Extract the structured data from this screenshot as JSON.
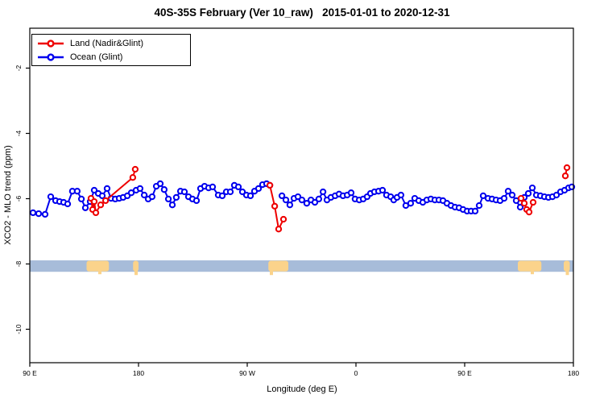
{
  "title": "40S-35S February (Ver 10_raw)   2015-01-01 to 2020-12-31",
  "legend": {
    "items": [
      {
        "label": "Land (Nadir&Glint)",
        "color": "#ee0000"
      },
      {
        "label": "Ocean (Glint)",
        "color": "#0000ee"
      }
    ]
  },
  "chart_data": {
    "type": "line",
    "title": "40S-35S February (Ver 10_raw)   2015-01-01 to 2020-12-31",
    "xlabel": "Longitude (deg E)",
    "ylabel": "XCO2 - MLO trend (ppm)",
    "x_axis": {
      "note": "wrapped longitude axis spanning 450 degrees starting at 90E; t = degrees east of 90E",
      "range_t": [
        0,
        450
      ],
      "ticks": [
        {
          "t": 0,
          "label": "90 E"
        },
        {
          "t": 90,
          "label": "180"
        },
        {
          "t": 180,
          "label": "90 W"
        },
        {
          "t": 270,
          "label": "0"
        },
        {
          "t": 360,
          "label": "90 E"
        },
        {
          "t": 450,
          "label": "180"
        }
      ]
    },
    "y_axis": {
      "ticks": [
        -2,
        -4,
        -6,
        -8,
        -10
      ],
      "range": [
        -11.0,
        -0.8
      ],
      "grid": false
    },
    "series": [
      {
        "name": "Land (Nadir&Glint)",
        "color": "#ee0000",
        "marker": "open-circle",
        "segments": [
          [
            [
              50.7,
              -5.99
            ],
            [
              52,
              -6.33
            ],
            [
              53.3,
              -6.09
            ],
            [
              54.7,
              -6.43
            ],
            [
              58.7,
              -6.19
            ],
            [
              62.7,
              -6.06
            ],
            [
              85.3,
              -5.35
            ],
            [
              87.3,
              -5.1
            ]
          ],
          [
            [
              198.7,
              -5.59
            ],
            [
              202.7,
              -6.23
            ],
            [
              206,
              -6.93
            ],
            [
              210,
              -6.63
            ]
          ],
          [
            [
              406.7,
              -5.99
            ],
            [
              409.3,
              -6.14
            ],
            [
              411.3,
              -6.33
            ],
            [
              413.3,
              -6.41
            ],
            [
              416.7,
              -6.11
            ]
          ],
          [
            [
              443.3,
              -5.3
            ],
            [
              444.7,
              -5.05
            ]
          ]
        ]
      },
      {
        "name": "Ocean (Glint)",
        "color": "#0000ee",
        "marker": "open-circle",
        "segments": [
          [
            [
              2.7,
              -6.43
            ],
            [
              7.3,
              -6.46
            ],
            [
              12.7,
              -6.48
            ],
            [
              17.3,
              -5.94
            ],
            [
              21.3,
              -6.06
            ],
            [
              24.7,
              -6.09
            ],
            [
              28,
              -6.11
            ],
            [
              31.3,
              -6.16
            ],
            [
              35.3,
              -5.77
            ],
            [
              39.3,
              -5.77
            ],
            [
              42.7,
              -6.01
            ],
            [
              46,
              -6.28
            ],
            [
              50,
              -6.09
            ],
            [
              53.3,
              -5.74
            ],
            [
              56.7,
              -5.84
            ],
            [
              60,
              -5.91
            ],
            [
              64,
              -5.69
            ],
            [
              67.3,
              -5.99
            ],
            [
              70.7,
              -6.01
            ],
            [
              74,
              -5.99
            ],
            [
              77.3,
              -5.96
            ],
            [
              80.7,
              -5.91
            ],
            [
              84,
              -5.82
            ],
            [
              88,
              -5.74
            ],
            [
              91.3,
              -5.69
            ],
            [
              94.7,
              -5.89
            ],
            [
              98,
              -6.01
            ],
            [
              101.3,
              -5.94
            ],
            [
              104.7,
              -5.62
            ],
            [
              108,
              -5.54
            ],
            [
              111.3,
              -5.72
            ],
            [
              114.7,
              -6.01
            ],
            [
              118,
              -6.19
            ],
            [
              121.3,
              -5.96
            ],
            [
              124.7,
              -5.77
            ],
            [
              128,
              -5.79
            ],
            [
              131.3,
              -5.94
            ],
            [
              134.7,
              -6.01
            ],
            [
              138,
              -6.06
            ],
            [
              141.3,
              -5.69
            ],
            [
              144.7,
              -5.62
            ],
            [
              148,
              -5.67
            ],
            [
              151.3,
              -5.64
            ],
            [
              156,
              -5.89
            ],
            [
              159.3,
              -5.91
            ],
            [
              162.7,
              -5.79
            ],
            [
              166,
              -5.79
            ],
            [
              169.3,
              -5.59
            ],
            [
              172.7,
              -5.64
            ],
            [
              176,
              -5.79
            ],
            [
              179.3,
              -5.89
            ],
            [
              182.7,
              -5.91
            ],
            [
              186,
              -5.77
            ],
            [
              189.3,
              -5.69
            ],
            [
              192.7,
              -5.57
            ],
            [
              196,
              -5.54
            ],
            [
              198.7,
              -5.59
            ]
          ],
          [
            [
              208.7,
              -5.91
            ],
            [
              212,
              -6.04
            ],
            [
              215.3,
              -6.19
            ],
            [
              218.7,
              -5.99
            ],
            [
              222,
              -5.94
            ],
            [
              225.3,
              -6.04
            ],
            [
              229.3,
              -6.14
            ],
            [
              232.7,
              -6.04
            ],
            [
              236,
              -6.11
            ],
            [
              239.3,
              -6.01
            ],
            [
              242.7,
              -5.79
            ],
            [
              246,
              -6.04
            ],
            [
              249.3,
              -5.96
            ],
            [
              252.7,
              -5.91
            ],
            [
              256,
              -5.86
            ],
            [
              259.3,
              -5.91
            ],
            [
              262.7,
              -5.89
            ],
            [
              266,
              -5.82
            ],
            [
              269.3,
              -6.01
            ],
            [
              272.7,
              -6.04
            ],
            [
              276,
              -6.01
            ],
            [
              279.3,
              -5.94
            ],
            [
              282,
              -5.84
            ],
            [
              285.3,
              -5.79
            ],
            [
              288.7,
              -5.77
            ],
            [
              292,
              -5.74
            ],
            [
              295.3,
              -5.89
            ],
            [
              298.7,
              -5.94
            ],
            [
              301.3,
              -6.04
            ],
            [
              304,
              -5.96
            ],
            [
              307.3,
              -5.89
            ],
            [
              311.3,
              -6.21
            ],
            [
              315.3,
              -6.14
            ],
            [
              318.7,
              -5.99
            ],
            [
              322,
              -6.06
            ],
            [
              325.3,
              -6.11
            ],
            [
              328.7,
              -6.04
            ],
            [
              332,
              -6.01
            ],
            [
              335.3,
              -6.04
            ],
            [
              338.7,
              -6.04
            ],
            [
              342,
              -6.06
            ],
            [
              345.3,
              -6.14
            ],
            [
              348.7,
              -6.21
            ],
            [
              352,
              -6.26
            ],
            [
              355.3,
              -6.28
            ],
            [
              358.7,
              -6.33
            ],
            [
              362,
              -6.38
            ],
            [
              365.3,
              -6.38
            ],
            [
              368.7,
              -6.38
            ],
            [
              372,
              -6.21
            ],
            [
              375.3,
              -5.91
            ],
            [
              379.3,
              -5.99
            ],
            [
              382.7,
              -6.01
            ],
            [
              386,
              -6.04
            ],
            [
              389.3,
              -6.06
            ],
            [
              392.7,
              -5.99
            ],
            [
              396,
              -5.77
            ],
            [
              399.3,
              -5.89
            ],
            [
              402.7,
              -6.06
            ],
            [
              406,
              -6.26
            ],
            [
              409.3,
              -5.96
            ],
            [
              412.7,
              -5.84
            ],
            [
              416,
              -5.67
            ],
            [
              419.3,
              -5.89
            ],
            [
              422.7,
              -5.91
            ],
            [
              426,
              -5.94
            ],
            [
              429.3,
              -5.96
            ],
            [
              432.7,
              -5.94
            ],
            [
              436,
              -5.89
            ],
            [
              439.3,
              -5.79
            ],
            [
              442.7,
              -5.74
            ],
            [
              446,
              -5.67
            ],
            [
              448.7,
              -5.64
            ]
          ]
        ]
      }
    ],
    "land_ocean_strip": {
      "description": "latitude-band map strip showing ocean (light blue) and land (tan) along longitude",
      "band_v": [
        -7.89,
        -8.24
      ],
      "ocean_color": "#a7bcd9",
      "land_color": "#fbd38b",
      "land_blobs": [
        {
          "t": [
            47,
            65.5
          ],
          "tail": [
            58,
            3
          ]
        },
        {
          "t": [
            85.5,
            90
          ],
          "tail": [
            88,
            4
          ]
        },
        {
          "t": [
            197.5,
            214
          ],
          "tail": [
            200,
            4
          ]
        },
        {
          "t": [
            404,
            423.5
          ],
          "tail": [
            416,
            3
          ]
        },
        {
          "t": [
            442,
            447
          ],
          "tail": [
            445,
            4
          ]
        }
      ]
    },
    "legend_position": "top-left"
  }
}
